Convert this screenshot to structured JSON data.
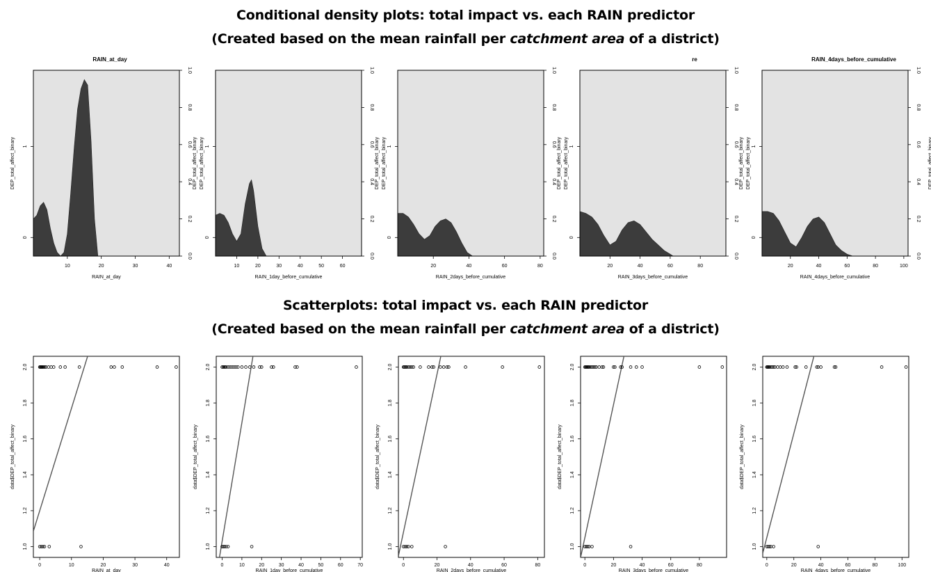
{
  "titles": {
    "density_line1": "Conditional density plots: total impact vs. each RAIN predictor",
    "density_line2_pre": "(Created based on the mean rainfall per ",
    "density_line2_em": "catchment area",
    "density_line2_post": " of a district)",
    "scatter_line1": "Scatterplots: total impact vs. each RAIN predictor",
    "scatter_line2_pre": "(Created based on the mean rainfall per ",
    "scatter_line2_em": "catchment area",
    "scatter_line2_post": " of a district)"
  },
  "colors": {
    "fill_density": "#3c3c3c",
    "background_density": "#e3e3e3",
    "axis": "#000000",
    "line": "#555555"
  },
  "chart_data": [
    {
      "type": "area",
      "panel": "density",
      "title": "RAIN_at_day",
      "xlabel": "RAIN_at_day",
      "ylabel": "DEP_total_affect_binary",
      "xlim": [
        0,
        43
      ],
      "ylim": [
        0,
        1
      ],
      "xticks": [
        10,
        20,
        30,
        40
      ],
      "yticks_left": [
        "0",
        "1"
      ],
      "yticks_right": [
        0,
        0.2,
        0.4,
        0.6,
        0.8,
        1.0
      ],
      "x": [
        0,
        1,
        2,
        3,
        4,
        5,
        6,
        7,
        8,
        9,
        10,
        11,
        12,
        13,
        14,
        15,
        16,
        17,
        18,
        19,
        20,
        43
      ],
      "y": [
        0.2,
        0.22,
        0.27,
        0.29,
        0.25,
        0.15,
        0.07,
        0.02,
        0.0,
        0.02,
        0.12,
        0.34,
        0.58,
        0.79,
        0.9,
        0.95,
        0.92,
        0.62,
        0.2,
        0.0,
        0.0,
        0.0
      ]
    },
    {
      "type": "area",
      "panel": "density",
      "title": "",
      "xlabel": "RAIN_1day_before_cumulative",
      "ylabel": "DEP_total_affect_binary",
      "xlim": [
        0,
        69
      ],
      "ylim": [
        0,
        1
      ],
      "xticks": [
        10,
        20,
        30,
        40,
        50,
        60
      ],
      "yticks_left": [
        "0",
        "1"
      ],
      "yticks_right": [
        0,
        0.2,
        0.4,
        0.6,
        0.8,
        1.0
      ],
      "x": [
        0,
        2,
        4,
        6,
        8,
        10,
        12,
        14,
        16,
        17,
        18,
        20,
        22,
        24,
        26,
        69
      ],
      "y": [
        0.22,
        0.23,
        0.22,
        0.18,
        0.12,
        0.08,
        0.12,
        0.28,
        0.39,
        0.41,
        0.35,
        0.16,
        0.04,
        0.0,
        0.0,
        0.0
      ]
    },
    {
      "type": "area",
      "panel": "density",
      "title": "",
      "xlabel": "RAIN_2days_before_cumulative",
      "ylabel": "DEP_total_affect_binary",
      "xlim": [
        0,
        82
      ],
      "ylim": [
        0,
        1
      ],
      "xticks": [
        20,
        40,
        60,
        80
      ],
      "yticks_left": [
        "0",
        "1"
      ],
      "yticks_right": [
        0,
        0.2,
        0.4,
        0.6,
        0.8,
        1.0
      ],
      "x": [
        0,
        3,
        6,
        9,
        12,
        15,
        18,
        21,
        24,
        27,
        30,
        33,
        36,
        39,
        42,
        45,
        82
      ],
      "y": [
        0.23,
        0.23,
        0.21,
        0.17,
        0.12,
        0.09,
        0.11,
        0.16,
        0.19,
        0.2,
        0.18,
        0.13,
        0.07,
        0.02,
        0.0,
        0.0,
        0.0
      ]
    },
    {
      "type": "area",
      "panel": "density",
      "title": "re",
      "xlabel": "RAIN_3days_before_cumulative",
      "ylabel": "DEP_total_affect_binary",
      "xlim": [
        0,
        97
      ],
      "ylim": [
        0,
        1
      ],
      "xticks": [
        20,
        40,
        60,
        80
      ],
      "yticks_left": [
        "0",
        "1"
      ],
      "yticks_right": [
        0,
        0.2,
        0.4,
        0.6,
        0.8,
        1.0
      ],
      "x": [
        0,
        4,
        8,
        12,
        16,
        20,
        24,
        28,
        32,
        36,
        40,
        44,
        48,
        52,
        56,
        60,
        62,
        97
      ],
      "y": [
        0.24,
        0.23,
        0.21,
        0.17,
        0.11,
        0.06,
        0.08,
        0.14,
        0.18,
        0.19,
        0.17,
        0.13,
        0.09,
        0.06,
        0.03,
        0.01,
        0.0,
        0.0
      ]
    },
    {
      "type": "area",
      "panel": "density",
      "title": "RAIN_4days_before_cumulative",
      "xlabel": "RAIN_4days_before_cumulative",
      "ylabel": "DEP_total_affect_binary",
      "xlim": [
        0,
        103
      ],
      "ylim": [
        0,
        1
      ],
      "xticks": [
        20,
        40,
        60,
        80,
        100
      ],
      "yticks_left": [
        "0",
        "1"
      ],
      "yticks_right": [
        0,
        0.2,
        0.4,
        0.6,
        0.8,
        1.0
      ],
      "x": [
        0,
        4,
        8,
        12,
        16,
        20,
        24,
        28,
        32,
        36,
        40,
        44,
        48,
        52,
        56,
        60,
        64,
        66,
        103
      ],
      "y": [
        0.24,
        0.24,
        0.23,
        0.19,
        0.13,
        0.07,
        0.05,
        0.1,
        0.16,
        0.2,
        0.21,
        0.18,
        0.12,
        0.06,
        0.03,
        0.01,
        0.0,
        0.0,
        0.0
      ]
    },
    {
      "type": "scatter",
      "panel": "scatter",
      "xlabel": "RAIN_at_day",
      "ylabel": "data$DEP_total_affect_binary",
      "xlim": [
        -2,
        44
      ],
      "ylim": [
        0.94,
        2.06
      ],
      "xticks": [
        0,
        10,
        20,
        30,
        40
      ],
      "yticks": [
        1.0,
        1.2,
        1.4,
        1.6,
        1.8,
        2.0
      ],
      "points_y2": [
        0,
        0.2,
        0.4,
        0.6,
        0.8,
        1,
        1.3,
        1.6,
        2,
        2.8,
        3.6,
        4.4,
        6.5,
        8,
        12.5,
        22.5,
        23.5,
        26,
        37,
        43
      ],
      "points_y1": [
        0,
        0.5,
        1,
        1.5,
        3,
        13
      ],
      "line": {
        "intercept": 1.2,
        "slope": 0.057
      }
    },
    {
      "type": "scatter",
      "panel": "scatter",
      "xlabel": "RAIN_1day_before_cumulative",
      "ylabel": "data$DEP_total_affect_binary",
      "xlim": [
        -3,
        71
      ],
      "ylim": [
        0.94,
        2.06
      ],
      "xticks": [
        0,
        10,
        20,
        30,
        40,
        50,
        60,
        70
      ],
      "yticks": [
        1.0,
        1.2,
        1.4,
        1.6,
        1.8,
        2.0
      ],
      "points_y2": [
        0,
        0.5,
        1,
        1.5,
        2,
        3,
        4,
        5,
        6,
        7,
        8,
        10,
        12,
        14,
        16,
        19,
        20,
        25,
        26,
        37,
        38,
        68
      ],
      "points_y1": [
        0,
        0.6,
        1.2,
        2,
        3,
        15
      ],
      "line": {
        "intercept": 1.03,
        "slope": 0.066
      }
    },
    {
      "type": "scatter",
      "panel": "scatter",
      "xlabel": "RAIN_2days_before_cumulative",
      "ylabel": "data$DEP_total_affect_binary",
      "xlim": [
        -3,
        84
      ],
      "ylim": [
        0.94,
        2.06
      ],
      "xticks": [
        0,
        20,
        40,
        60,
        80
      ],
      "yticks": [
        1.0,
        1.2,
        1.4,
        1.6,
        1.8,
        2.0
      ],
      "points_y2": [
        0,
        0.5,
        1,
        1.5,
        2,
        3,
        4,
        5,
        6,
        10,
        15,
        17,
        18,
        22,
        24,
        26,
        27,
        37,
        59,
        81
      ],
      "points_y1": [
        0,
        1,
        2,
        3,
        5,
        25
      ],
      "line": {
        "intercept": 1.08,
        "slope": 0.044
      }
    },
    {
      "type": "scatter",
      "panel": "scatter",
      "xlabel": "RAIN_3days_before_cumulative",
      "ylabel": "data$DEP_total_affect_binary",
      "xlim": [
        -3,
        99
      ],
      "ylim": [
        0.94,
        2.06
      ],
      "xticks": [
        0,
        20,
        40,
        60,
        80
      ],
      "yticks": [
        1.0,
        1.2,
        1.4,
        1.6,
        1.8,
        2.0
      ],
      "points_y2": [
        0,
        0.5,
        1,
        1.5,
        2,
        2.5,
        3,
        4,
        5,
        6,
        7,
        8,
        10,
        12,
        13,
        20,
        21,
        25,
        26,
        32,
        36,
        40,
        80,
        96
      ],
      "points_y1": [
        0,
        1,
        2,
        3,
        5,
        32
      ],
      "line": {
        "intercept": 1.05,
        "slope": 0.037
      }
    },
    {
      "type": "scatter",
      "panel": "scatter",
      "xlabel": "RAIN_4days_before_cumulative",
      "ylabel": "data$DEP_total_affect_binary",
      "xlim": [
        -3,
        105
      ],
      "ylim": [
        0.94,
        2.06
      ],
      "xticks": [
        0,
        20,
        40,
        60,
        80,
        100
      ],
      "yticks": [
        1.0,
        1.2,
        1.4,
        1.6,
        1.8,
        2.0
      ],
      "points_y2": [
        0,
        0.5,
        1,
        1.5,
        2,
        3,
        4,
        5,
        6,
        8,
        10,
        12,
        15,
        21,
        22,
        29,
        37,
        38,
        40,
        50,
        51,
        85,
        103
      ],
      "points_y1": [
        0,
        1,
        2,
        3,
        5,
        38
      ],
      "line": {
        "intercept": 1.05,
        "slope": 0.029
      }
    }
  ]
}
